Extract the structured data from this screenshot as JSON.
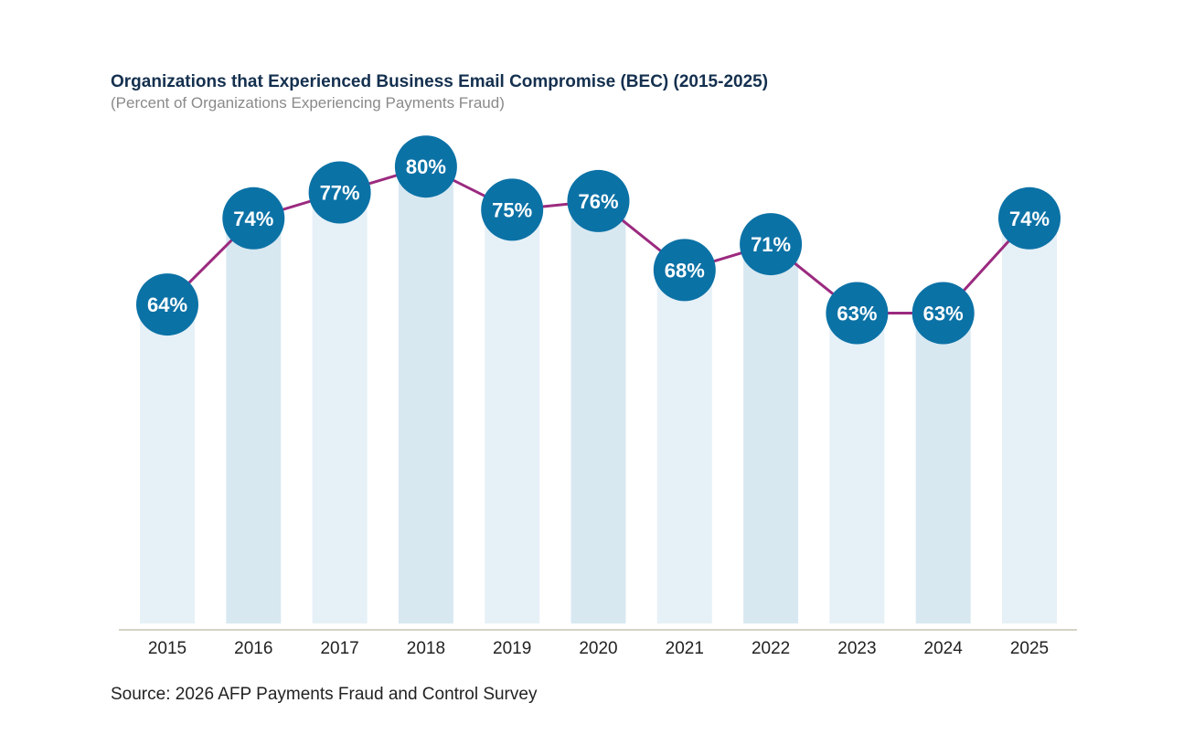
{
  "chart_data": {
    "type": "bar",
    "title": "Organizations that Experienced Business Email Compromise (BEC) (2015-2025)",
    "subtitle": "(Percent of Organizations Experiencing Payments Fraud)",
    "categories": [
      "2015",
      "2016",
      "2017",
      "2018",
      "2019",
      "2020",
      "2021",
      "2022",
      "2023",
      "2024",
      "2025"
    ],
    "values": [
      64,
      74,
      77,
      80,
      75,
      76,
      68,
      71,
      63,
      63,
      74
    ],
    "labels": [
      "64%",
      "74%",
      "77%",
      "80%",
      "75%",
      "76%",
      "68%",
      "71%",
      "63%",
      "63%",
      "74%"
    ],
    "xlabel": "",
    "ylabel": "",
    "ylim": [
      27,
      85
    ],
    "grid": false,
    "overlay": "line with circle markers",
    "source": "Source: 2026 AFP Payments Fraud and Control Survey",
    "colors": {
      "bar_light": "#e6f0f7",
      "bar_dark": "#d8e8f1",
      "marker": "#0b72a6",
      "line": "#9b2a7f",
      "axis": "#d6d2c6",
      "title": "#14304f"
    }
  }
}
